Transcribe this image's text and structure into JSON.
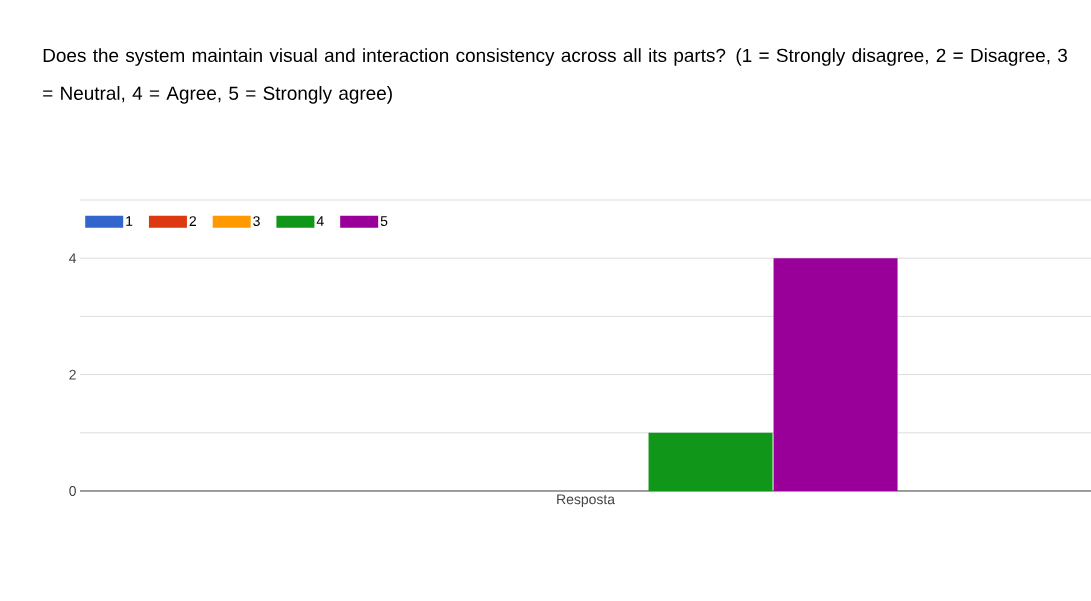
{
  "chart_data": {
    "type": "bar",
    "title": "Does the system maintain visual and interaction consistency across all its parts?  (1 = Strongly disagree, 2 = Disagree, 3 = Neutral, 4 = Agree, 5 = Strongly agree)",
    "categories": [
      "Resposta"
    ],
    "series": [
      {
        "name": "1",
        "color": "#3366cc",
        "values": [
          0
        ]
      },
      {
        "name": "2",
        "color": "#dc3912",
        "values": [
          0
        ]
      },
      {
        "name": "3",
        "color": "#ff9900",
        "values": [
          0
        ]
      },
      {
        "name": "4",
        "color": "#109618",
        "values": [
          1
        ]
      },
      {
        "name": "5",
        "color": "#990099",
        "values": [
          4
        ]
      }
    ],
    "ylim": [
      0,
      5
    ],
    "yticks": [
      0,
      {
        "value": 1,
        "label": null
      },
      2,
      {
        "value": 3,
        "label": null
      },
      4,
      {
        "value": 5,
        "label": null
      }
    ],
    "grid": "y",
    "legend": "top left"
  }
}
